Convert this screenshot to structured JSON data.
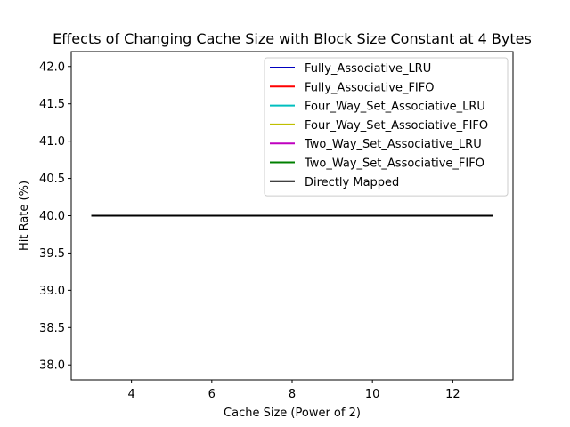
{
  "chart_data": {
    "type": "line",
    "title": "Effects of Changing Cache Size with Block Size Constant at 4 Bytes",
    "xlabel": "Cache Size (Power of 2)",
    "ylabel": "Hit Rate (%)",
    "xlim": [
      2.5,
      13.5
    ],
    "ylim": [
      37.8,
      42.2
    ],
    "xticks": [
      4,
      6,
      8,
      10,
      12
    ],
    "yticks": [
      38.0,
      38.5,
      39.0,
      39.5,
      40.0,
      40.5,
      41.0,
      41.5,
      42.0
    ],
    "ytick_labels": [
      "38.0",
      "38.5",
      "39.0",
      "39.5",
      "40.0",
      "40.5",
      "41.0",
      "41.5",
      "42.0"
    ],
    "grid": false,
    "legend_position": "upper right",
    "x": [
      3,
      4,
      5,
      6,
      7,
      8,
      9,
      10,
      11,
      12,
      13
    ],
    "series": [
      {
        "name": "Fully_Associative_LRU",
        "color": "#0000bf",
        "values": [
          40,
          40,
          40,
          40,
          40,
          40,
          40,
          40,
          40,
          40,
          40
        ]
      },
      {
        "name": "Fully_Associative_FIFO",
        "color": "#ff0000",
        "values": [
          40,
          40,
          40,
          40,
          40,
          40,
          40,
          40,
          40,
          40,
          40
        ]
      },
      {
        "name": "Four_Way_Set_Associative_LRU",
        "color": "#00bfbf",
        "values": [
          40,
          40,
          40,
          40,
          40,
          40,
          40,
          40,
          40,
          40,
          40
        ]
      },
      {
        "name": "Four_Way_Set_Associative_FIFO",
        "color": "#bfbf00",
        "values": [
          40,
          40,
          40,
          40,
          40,
          40,
          40,
          40,
          40,
          40,
          40
        ]
      },
      {
        "name": "Two_Way_Set_Associative_LRU",
        "color": "#bf00bf",
        "values": [
          40,
          40,
          40,
          40,
          40,
          40,
          40,
          40,
          40,
          40,
          40
        ]
      },
      {
        "name": "Two_Way_Set_Associative_FIFO",
        "color": "#008000",
        "values": [
          40,
          40,
          40,
          40,
          40,
          40,
          40,
          40,
          40,
          40,
          40
        ]
      },
      {
        "name": "Directly Mapped",
        "color": "#000000",
        "values": [
          40,
          40,
          40,
          40,
          40,
          40,
          40,
          40,
          40,
          40,
          40
        ]
      }
    ]
  }
}
